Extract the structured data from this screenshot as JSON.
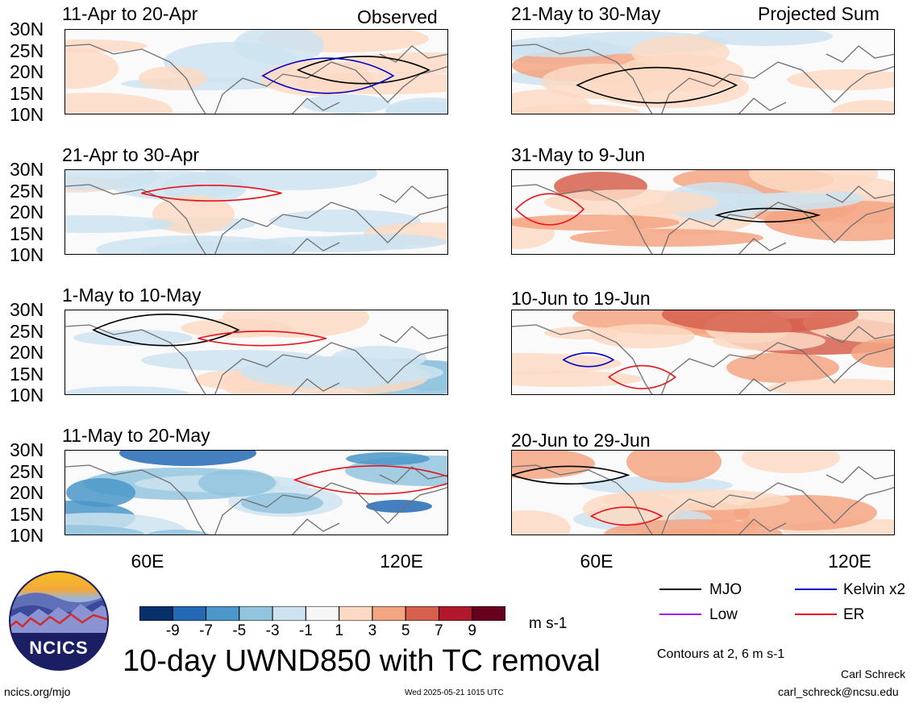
{
  "panels": [
    {
      "title": "11-Apr to 20-Apr"
    },
    {
      "title": "21-Apr to 30-Apr"
    },
    {
      "title": "1-May to 10-May"
    },
    {
      "title": "11-May to 20-May"
    },
    {
      "title": "21-May to 30-May"
    },
    {
      "title": "31-May to 9-Jun"
    },
    {
      "title": "10-Jun to 19-Jun"
    },
    {
      "title": "20-Jun to 29-Jun"
    }
  ],
  "labels": {
    "observed": "Observed",
    "projected": "Projected Sum",
    "lat_ticks": [
      "30N",
      "25N",
      "20N",
      "15N",
      "10N"
    ],
    "lon_ticks": [
      "60E",
      "120E"
    ]
  },
  "colorbar": {
    "colors": [
      "#08306b",
      "#2369b5",
      "#4a97c9",
      "#93c4de",
      "#cde3f0",
      "#f7f7f7",
      "#fcd9c3",
      "#f4a582",
      "#d6604d",
      "#b2182b",
      "#67001f"
    ],
    "ticks": [
      "-9",
      "-7",
      "-5",
      "-3",
      "-1",
      "1",
      "3",
      "5",
      "7",
      "9"
    ],
    "unit": "m s-1"
  },
  "legend": {
    "items": [
      {
        "label": "MJO",
        "color": "#000000"
      },
      {
        "label": "Kelvin x2",
        "color": "#0000cc"
      },
      {
        "label": "Low",
        "color": "#a020f0"
      },
      {
        "label": "ER",
        "color": "#e8121b"
      }
    ],
    "contours": "Contours at 2, 6 m s-1"
  },
  "footer": {
    "logo_text": "NCICS",
    "main_title": "10-day UWND850 with TC removal",
    "url": "ncics.org/mjo",
    "timestamp": "Wed 2025-05-21 1015 UTC",
    "author": "Carl Schreck",
    "email": "carl_schreck@ncsu.edu"
  }
}
